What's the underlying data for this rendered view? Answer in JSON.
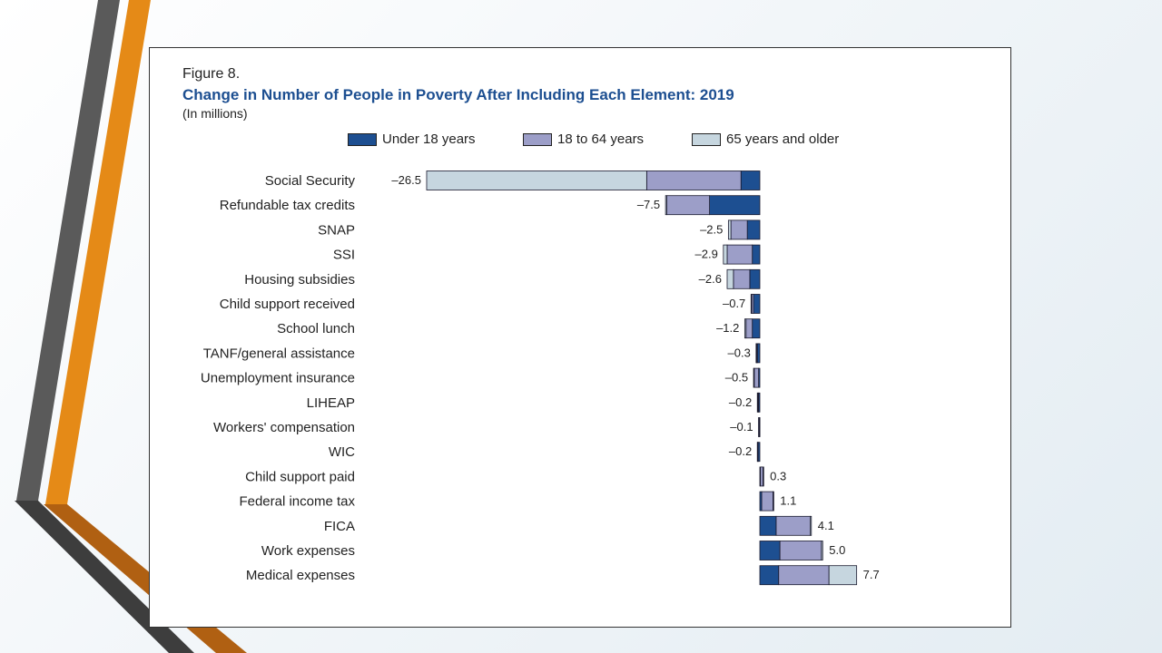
{
  "figure": {
    "number": "Figure 8.",
    "title": "Change in Number of People in Poverty After Including Each Element: 2019",
    "subtitle": "(In millions)"
  },
  "colors": {
    "under18": "#1d4f91",
    "age18to64": "#9c9ec8",
    "age65plus": "#c6d6df",
    "border": "#1a1a2e",
    "orange": "#e58a17",
    "gray": "#5a5a5a"
  },
  "chart_data": {
    "type": "bar",
    "orientation": "horizontal",
    "stacked": true,
    "xlim": [
      -26.5,
      7.7
    ],
    "grid": false,
    "legend_position": "top",
    "legend": [
      "Under 18 years",
      "18 to 64 years",
      "65 years and older"
    ],
    "categories": [
      "Social Security",
      "Refundable tax credits",
      "SNAP",
      "SSI",
      "Housing subsidies",
      "Child support received",
      "School lunch",
      "TANF/general assistance",
      "Unemployment insurance",
      "LIHEAP",
      "Workers' compensation",
      "WIC",
      "Child support paid",
      "Federal income tax",
      "FICA",
      "Work expenses",
      "Medical expenses"
    ],
    "totals": [
      -26.5,
      -7.5,
      -2.5,
      -2.9,
      -2.6,
      -0.7,
      -1.2,
      -0.3,
      -0.5,
      -0.2,
      -0.1,
      -0.2,
      0.3,
      1.1,
      4.1,
      5.0,
      7.7
    ],
    "total_labels": [
      "–26.5",
      "–7.5",
      "–2.5",
      "–2.9",
      "–2.6",
      "–0.7",
      "–1.2",
      "–0.3",
      "–0.5",
      "–0.2",
      "–0.1",
      "–0.2",
      "0.3",
      "1.1",
      "4.1",
      "5.0",
      "7.7"
    ],
    "series": [
      {
        "name": "Under 18 years",
        "values": [
          -1.5,
          -4.0,
          -1.0,
          -0.6,
          -0.8,
          -0.5,
          -0.6,
          -0.2,
          -0.1,
          -0.1,
          -0.05,
          -0.15,
          0.05,
          0.15,
          1.3,
          1.6,
          1.5
        ]
      },
      {
        "name": "18 to 64 years",
        "values": [
          -7.5,
          -3.4,
          -1.3,
          -2.0,
          -1.3,
          -0.15,
          -0.5,
          -0.08,
          -0.35,
          -0.05,
          -0.04,
          -0.04,
          0.2,
          0.9,
          2.7,
          3.3,
          4.0
        ]
      },
      {
        "name": "65 years and older",
        "values": [
          -17.5,
          -0.1,
          -0.2,
          -0.3,
          -0.5,
          -0.05,
          -0.1,
          -0.02,
          -0.05,
          -0.05,
          -0.01,
          -0.01,
          0.05,
          0.05,
          0.1,
          0.1,
          2.2
        ]
      }
    ]
  }
}
